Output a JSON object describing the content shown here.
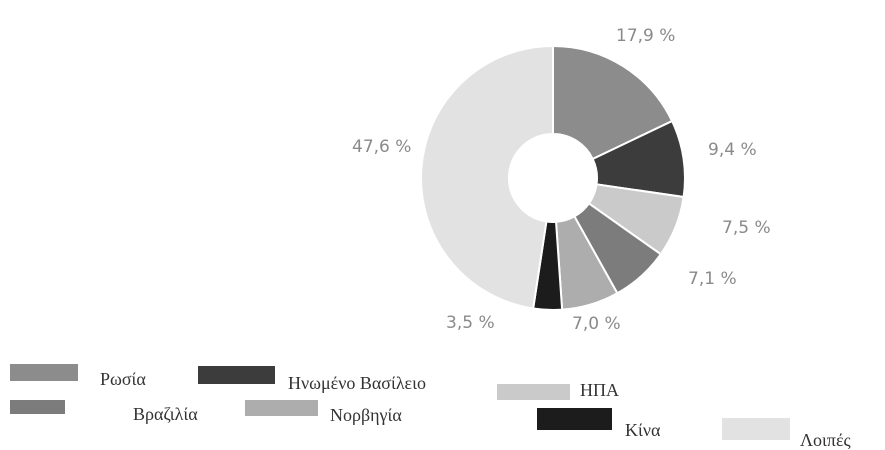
{
  "chart_data": {
    "type": "donut",
    "categories": [
      "Ρωσία",
      "Ηνωμένο Βασίλειο",
      "ΗΠΑ",
      "Βραζιλία",
      "Νορβηγία",
      "Κίνα",
      "Λοιπές"
    ],
    "values": [
      17.9,
      9.4,
      7.5,
      7.1,
      7.0,
      3.5,
      47.6
    ],
    "value_labels": [
      "17,9 %",
      "9,4 %",
      "7,5 %",
      "7,1 %",
      "7,0 %",
      "3,5 %",
      "47,6 %"
    ],
    "colors": [
      "#8c8c8c",
      "#3c3c3c",
      "#cacaca",
      "#7c7c7c",
      "#adadad",
      "#1c1c1c",
      "#e2e2e2"
    ],
    "legend": "bottom"
  }
}
